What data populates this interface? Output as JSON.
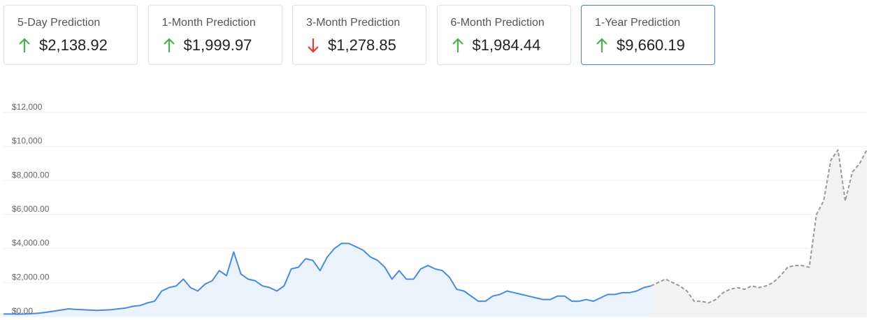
{
  "cards": [
    {
      "label": "5-Day Prediction",
      "value": "$2,138.92",
      "trend": "up"
    },
    {
      "label": "1-Month Prediction",
      "value": "$1,999.97",
      "trend": "up"
    },
    {
      "label": "3-Month Prediction",
      "value": "$1,278.85",
      "trend": "down"
    },
    {
      "label": "6-Month Prediction",
      "value": "$1,984.44",
      "trend": "up"
    },
    {
      "label": "1-Year Prediction",
      "value": "$9,660.19",
      "trend": "up",
      "selected": true
    }
  ],
  "chart_data": {
    "type": "line",
    "ylim": [
      0,
      12000
    ],
    "yticks": [
      {
        "value": 0,
        "label": "$0.00"
      },
      {
        "value": 2000,
        "label": "$2,000.00"
      },
      {
        "value": 4000,
        "label": "$4,000.00"
      },
      {
        "value": 6000,
        "label": "$6,000.00"
      },
      {
        "value": 8000,
        "label": "$8,000.00"
      },
      {
        "value": 10000,
        "label": "$10,000"
      },
      {
        "value": 12000,
        "label": "$12,000"
      }
    ],
    "grid": true,
    "series": [
      {
        "color": "#4a8ad8",
        "fill": "#eaf2fc",
        "dashed": false,
        "values": [
          150,
          150,
          140,
          150,
          170,
          200,
          250,
          320,
          380,
          450,
          420,
          400,
          380,
          360,
          380,
          400,
          450,
          500,
          600,
          650,
          800,
          900,
          1500,
          1700,
          1800,
          2200,
          1700,
          1500,
          1900,
          2100,
          2700,
          2400,
          3800,
          2500,
          2200,
          2100,
          1800,
          1700,
          1500,
          1800,
          2800,
          2900,
          3400,
          3300,
          2700,
          3500,
          4000,
          4300,
          4300,
          4100,
          3900,
          3500,
          3300,
          2900,
          2200,
          2700,
          2200,
          2200,
          2800,
          3000,
          2800,
          2700,
          2300,
          1600,
          1500,
          1200,
          900,
          900,
          1200,
          1300,
          1500,
          1400,
          1300,
          1200,
          1100,
          1000,
          1000,
          1200,
          1200,
          900,
          900,
          1000,
          900,
          1100,
          1300,
          1300,
          1400,
          1400,
          1500,
          1700,
          1800,
          null,
          null,
          null,
          null,
          null,
          null,
          null,
          null,
          null,
          null,
          null,
          null,
          null,
          null,
          null,
          null,
          null,
          null,
          null,
          null,
          null,
          null,
          null,
          null,
          null,
          null,
          null,
          null,
          null,
          null
        ]
      },
      {
        "color": "#999999",
        "fill": "#f2f2f2",
        "dashed": true,
        "values": [
          null,
          null,
          null,
          null,
          null,
          null,
          null,
          null,
          null,
          null,
          null,
          null,
          null,
          null,
          null,
          null,
          null,
          null,
          null,
          null,
          null,
          null,
          null,
          null,
          null,
          null,
          null,
          null,
          null,
          null,
          null,
          null,
          null,
          null,
          null,
          null,
          null,
          null,
          null,
          null,
          null,
          null,
          null,
          null,
          null,
          null,
          null,
          null,
          null,
          null,
          null,
          null,
          null,
          null,
          null,
          null,
          null,
          null,
          null,
          null,
          null,
          null,
          null,
          null,
          null,
          null,
          null,
          null,
          null,
          null,
          null,
          null,
          null,
          null,
          null,
          null,
          null,
          null,
          null,
          null,
          null,
          null,
          null,
          null,
          null,
          null,
          null,
          null,
          null,
          null,
          1800,
          2000,
          2200,
          2000,
          1800,
          1500,
          900,
          900,
          800,
          1000,
          1400,
          1600,
          1700,
          1600,
          1800,
          1700,
          1800,
          2000,
          2400,
          2900,
          3000,
          3000,
          2900,
          6000,
          6800,
          9200,
          9800,
          6800,
          8500,
          9000,
          9800
        ]
      }
    ]
  }
}
